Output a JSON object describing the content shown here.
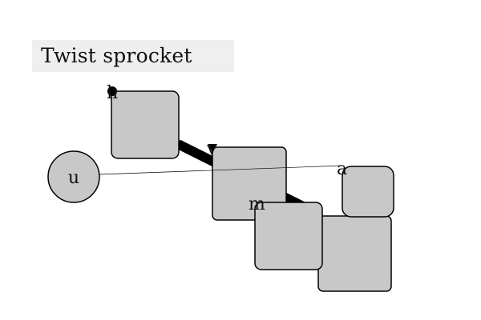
{
  "title": "Twist sprocket",
  "colors": {
    "node_fill": "#c8c8c8",
    "stroke": "#000000",
    "title_bg": "#efefef"
  },
  "nodes": [
    {
      "id": "n-h",
      "label": "h"
    },
    {
      "id": "n-u",
      "label": "u"
    },
    {
      "id": "n-v",
      "label": "v"
    },
    {
      "id": "n-a",
      "label": "a"
    },
    {
      "id": "n-m",
      "label": "m"
    },
    {
      "id": "n-big",
      "label": ""
    }
  ],
  "edges": [
    {
      "from": "h",
      "to": "m",
      "style": "thick"
    },
    {
      "from": "u",
      "to": "a",
      "style": "thin"
    }
  ]
}
